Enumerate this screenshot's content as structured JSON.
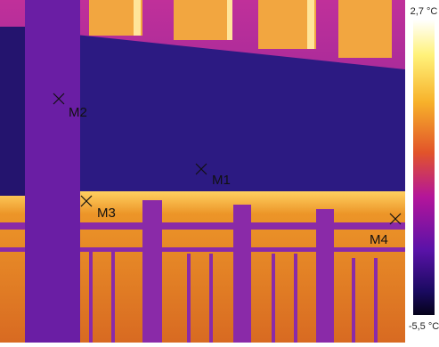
{
  "scale": {
    "max_label": "2,7 °C",
    "min_label": "-5,5 °C"
  },
  "markers": [
    {
      "label": "M1"
    },
    {
      "label": "M2"
    },
    {
      "label": "M3"
    },
    {
      "label": "M4"
    }
  ]
}
